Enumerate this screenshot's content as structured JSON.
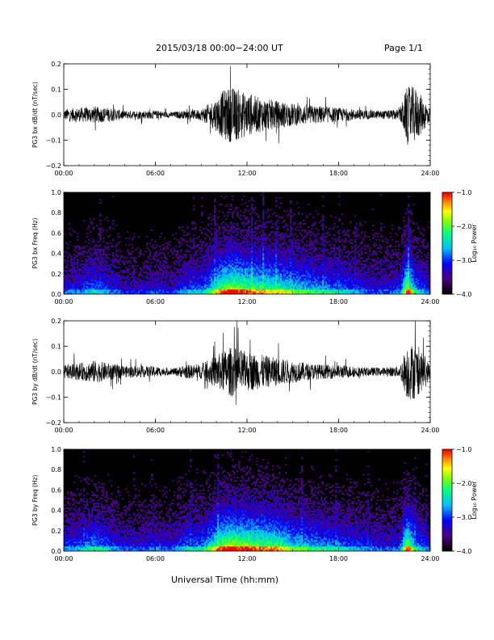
{
  "header": {
    "title": "2015/03/18  00:00−24:00 UT",
    "page": "Page 1/1"
  },
  "footer": {
    "xlabel": "Universal Time (hh:mm)"
  },
  "colors": {
    "trace": "#000000",
    "spectrogram_background": "#000000",
    "colorbar": [
      "#000000",
      "#4b0082",
      "#0000ff",
      "#00bfff",
      "#00ff7f",
      "#7fff00",
      "#ffff00",
      "#ff7f00",
      "#ff0000"
    ]
  },
  "chart_data": [
    {
      "type": "line",
      "title": "",
      "ylabel": "PG3 bx dB/dt (nT/sec)",
      "xlabel": "",
      "x_ticks": [
        "00:00",
        "06:00",
        "12:00",
        "18:00",
        "24:00"
      ],
      "y_ticks": [
        "0.2",
        "0.1",
        "0.0",
        "−0.1",
        "−0.2"
      ],
      "xlim_hours": [
        0,
        24
      ],
      "ylim": [
        -0.2,
        0.2
      ],
      "series": [
        {
          "envelope_hours": [
            0,
            1,
            2,
            3,
            4,
            5,
            6,
            7,
            8,
            9,
            10,
            10.5,
            11,
            11.5,
            12,
            13,
            14,
            15,
            16,
            17,
            18,
            19,
            20,
            21,
            22,
            22.5,
            23,
            24
          ],
          "envelope_amplitude": [
            0.04,
            0.05,
            0.06,
            0.05,
            0.03,
            0.03,
            0.03,
            0.02,
            0.03,
            0.04,
            0.12,
            0.18,
            0.2,
            0.18,
            0.15,
            0.12,
            0.1,
            0.08,
            0.07,
            0.06,
            0.05,
            0.04,
            0.03,
            0.03,
            0.04,
            0.2,
            0.2,
            0.05
          ]
        }
      ]
    },
    {
      "type": "heatmap",
      "title": "",
      "ylabel": "PG3 bx Freq (Hz)",
      "xlabel": "",
      "x_ticks": [
        "00:00",
        "06:00",
        "12:00",
        "18:00",
        "24:00"
      ],
      "y_ticks": [
        "1.0",
        "0.8",
        "0.6",
        "0.4",
        "0.2",
        "0.0"
      ],
      "xlim_hours": [
        0,
        24
      ],
      "ylim": [
        0,
        1.0
      ],
      "colorbar_label": "Log₁₀ Power",
      "colorbar_ticks": [
        "−1.0",
        "−2.0",
        "−3.0",
        "−4.0"
      ],
      "colorbar_range": [
        -4.0,
        -1.0
      ],
      "activity_hours": [
        0,
        1,
        2,
        3,
        4,
        5,
        6,
        7,
        8,
        9,
        10,
        10.5,
        11,
        11.5,
        12,
        13,
        14,
        15,
        16,
        17,
        18,
        19,
        20,
        21,
        22,
        22.5,
        23,
        24
      ],
      "activity_level": [
        0.3,
        0.35,
        0.45,
        0.35,
        0.25,
        0.25,
        0.3,
        0.25,
        0.4,
        0.4,
        0.7,
        0.85,
        0.9,
        0.85,
        0.8,
        0.75,
        0.7,
        0.6,
        0.55,
        0.5,
        0.45,
        0.4,
        0.3,
        0.3,
        0.35,
        0.9,
        0.5,
        0.3
      ]
    },
    {
      "type": "line",
      "title": "",
      "ylabel": "PG3 by dB/dt (nT/sec)",
      "xlabel": "",
      "x_ticks": [
        "00:00",
        "06:00",
        "12:00",
        "18:00",
        "24:00"
      ],
      "y_ticks": [
        "0.2",
        "0.1",
        "0.0",
        "−0.1",
        "−0.2"
      ],
      "xlim_hours": [
        0,
        24
      ],
      "ylim": [
        -0.2,
        0.2
      ],
      "series": [
        {
          "envelope_hours": [
            0,
            1,
            2,
            3,
            4,
            5,
            6,
            7,
            8,
            9,
            10,
            10.5,
            11,
            11.5,
            12,
            13,
            14,
            15,
            16,
            17,
            18,
            19,
            20,
            21,
            22,
            22.5,
            23,
            24
          ],
          "envelope_amplitude": [
            0.05,
            0.06,
            0.08,
            0.06,
            0.04,
            0.04,
            0.04,
            0.02,
            0.05,
            0.05,
            0.12,
            0.15,
            0.18,
            0.16,
            0.14,
            0.12,
            0.1,
            0.08,
            0.06,
            0.05,
            0.05,
            0.04,
            0.03,
            0.03,
            0.04,
            0.2,
            0.2,
            0.05
          ]
        }
      ]
    },
    {
      "type": "heatmap",
      "title": "",
      "ylabel": "PG3 by Freq (Hz)",
      "xlabel": "Universal Time (hh:mm)",
      "x_ticks": [
        "00:00",
        "06:00",
        "12:00",
        "18:00",
        "24:00"
      ],
      "y_ticks": [
        "1.0",
        "0.8",
        "0.6",
        "0.4",
        "0.2",
        "0.0"
      ],
      "xlim_hours": [
        0,
        24
      ],
      "ylim": [
        0,
        1.0
      ],
      "colorbar_label": "Log₁₀ Power",
      "colorbar_ticks": [
        "−1.0",
        "−2.0",
        "−3.0",
        "−4.0"
      ],
      "colorbar_range": [
        -4.0,
        -1.0
      ],
      "activity_hours": [
        0,
        1,
        2,
        3,
        4,
        5,
        6,
        7,
        8,
        9,
        10,
        10.5,
        11,
        11.5,
        12,
        13,
        14,
        15,
        16,
        17,
        18,
        19,
        20,
        21,
        22,
        22.5,
        23,
        24
      ],
      "activity_level": [
        0.35,
        0.4,
        0.5,
        0.4,
        0.3,
        0.3,
        0.35,
        0.3,
        0.45,
        0.45,
        0.75,
        0.85,
        0.9,
        0.85,
        0.85,
        0.8,
        0.75,
        0.6,
        0.55,
        0.5,
        0.45,
        0.4,
        0.35,
        0.3,
        0.35,
        0.9,
        0.5,
        0.3
      ]
    }
  ]
}
